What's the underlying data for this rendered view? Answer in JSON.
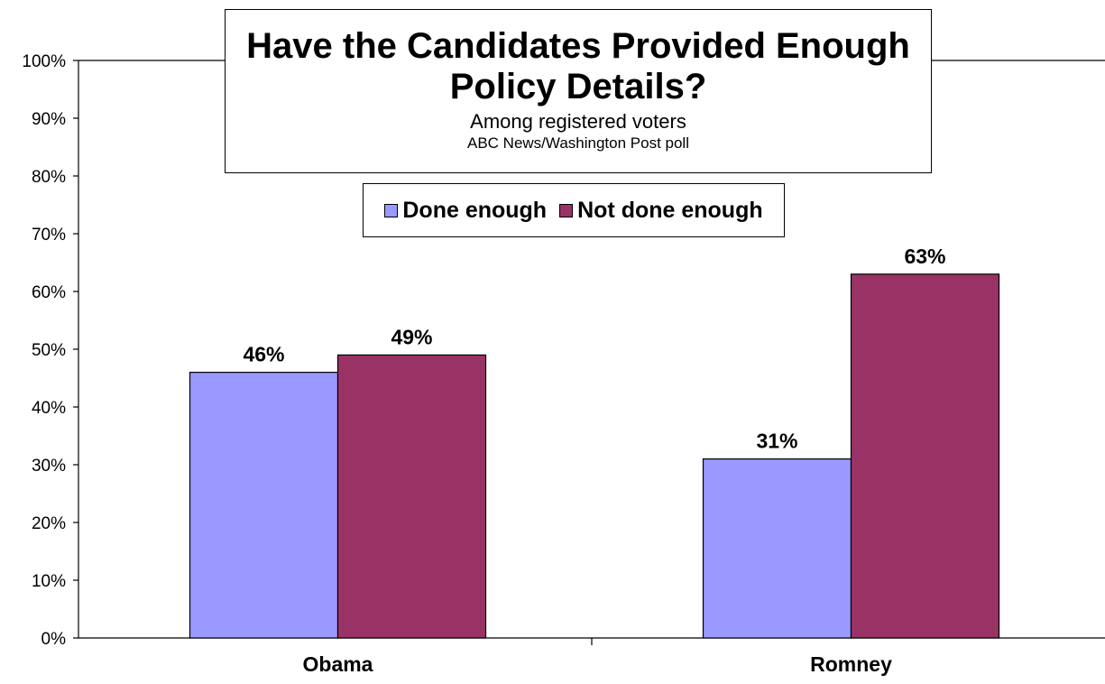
{
  "chart_data": {
    "type": "bar",
    "title": "Have the Candidates Provided Enough Policy Details?",
    "subtitle": "Among registered voters",
    "source": "ABC News/Washington  Post poll",
    "categories": [
      "Obama",
      "Romney"
    ],
    "series": [
      {
        "name": "Done enough",
        "values": [
          46,
          31
        ],
        "color": "#9999FF"
      },
      {
        "name": "Not done enough",
        "values": [
          49,
          63
        ],
        "color": "#993366"
      }
    ],
    "data_labels": [
      [
        "46%",
        "31%"
      ],
      [
        "49%",
        "63%"
      ]
    ],
    "ylim": [
      0,
      100
    ],
    "yticks": [
      "0%",
      "10%",
      "20%",
      "30%",
      "40%",
      "50%",
      "60%",
      "70%",
      "80%",
      "90%",
      "100%"
    ],
    "xlabel": "",
    "ylabel": "",
    "grid": false,
    "legend_position": "top-center"
  }
}
